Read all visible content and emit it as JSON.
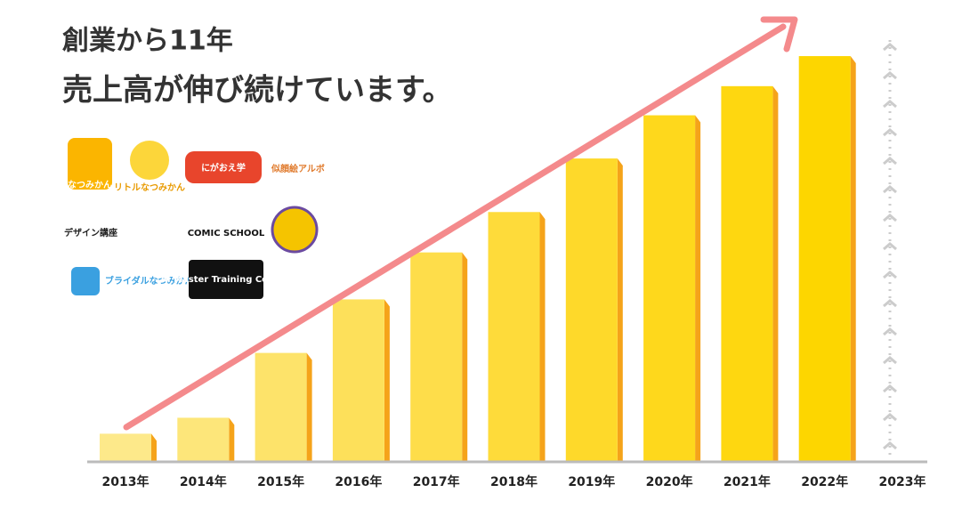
{
  "chart_data": {
    "type": "bar",
    "title": "創業から11年",
    "subtitle": "売上高が伸び続けています。",
    "categories": [
      "2013年",
      "2014年",
      "2015年",
      "2016年",
      "2017年",
      "2018年",
      "2019年",
      "2020年",
      "2021年",
      "2022年",
      "2023年"
    ],
    "values": [
      29,
      46,
      115,
      172,
      222,
      265,
      322,
      368,
      399,
      431,
      null
    ],
    "colors": [
      "#fde98a",
      "#fde67a",
      "#fde36a",
      "#fde05a",
      "#fedd4a",
      "#fedb3a",
      "#fed92a",
      "#fed81c",
      "#fed710",
      "#fdd600",
      null
    ],
    "ylim": [
      0,
      450
    ]
  },
  "logos": [
    "なつみかん",
    "リトルなつみかん",
    "にがおえ学",
    "似顔絵アルボ",
    "デザイン講座",
    "COMIC SCHOOL",
    "ブライダルなつみかん",
    "AI Master Training Course"
  ]
}
